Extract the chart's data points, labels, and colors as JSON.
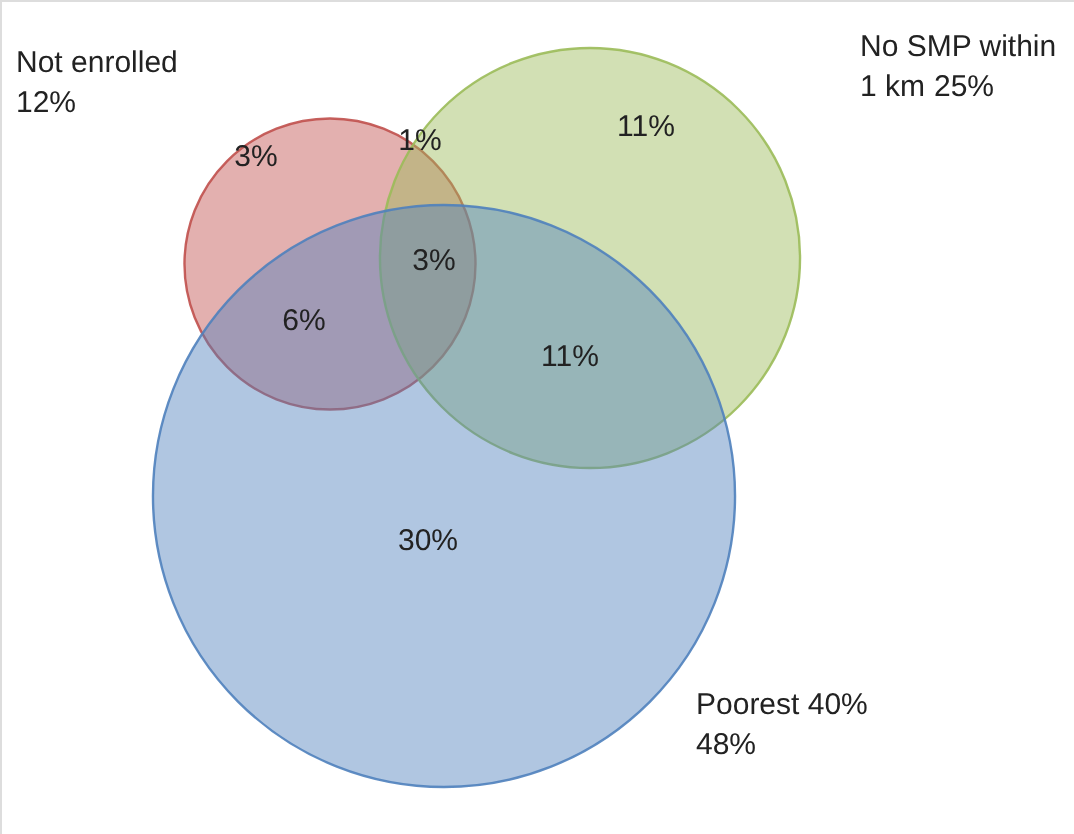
{
  "chart_data": {
    "type": "other",
    "categories": [
      "Not enrolled",
      "No SMP within\n1 km",
      "Poorest 40%"
    ],
    "values": [
      12,
      25,
      48
    ],
    "value_labels": [
      "12%",
      "25%",
      "48%"
    ],
    "colors": [
      "#c0504d",
      "#9bbb59",
      "#4f81bd"
    ],
    "annotations": [
      "3%",
      "1%",
      "11%",
      "6%",
      "3%",
      "11%",
      "30%"
    ]
  }
}
